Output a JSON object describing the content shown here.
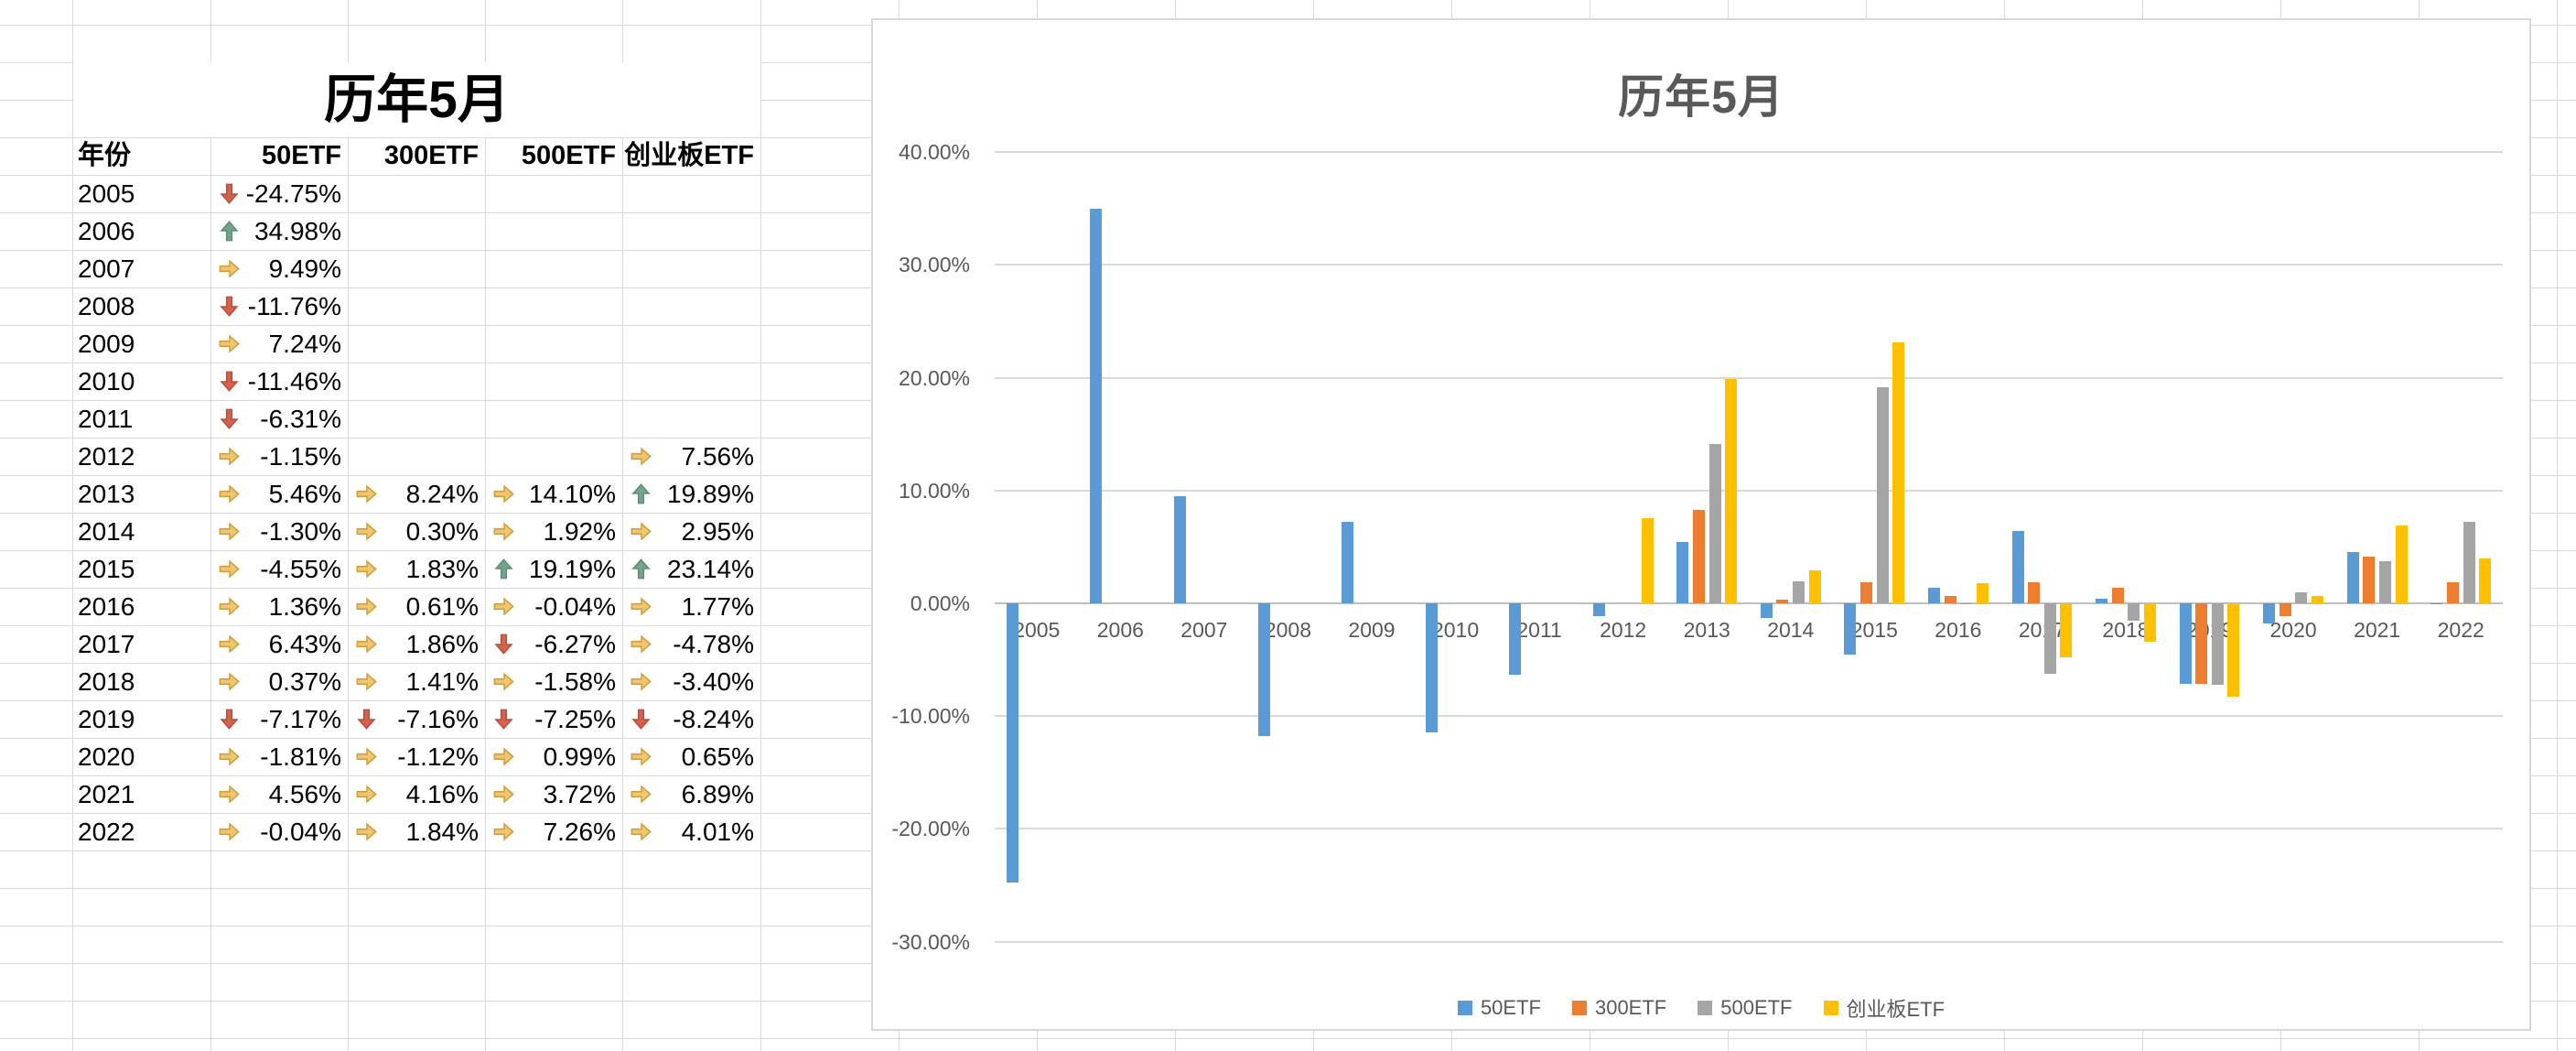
{
  "table": {
    "title": "历年5月",
    "headers": [
      "年份",
      "50ETF",
      "300ETF",
      "500ETF",
      "创业板ETF"
    ],
    "icon_colors": {
      "up": {
        "fill": "#74A48E",
        "stroke": "#5F8F79"
      },
      "right": {
        "fill": "#F0C670",
        "stroke": "#CE9F3F"
      },
      "down": {
        "fill": "#D4624C",
        "stroke": "#BC4F3A"
      }
    },
    "rows": [
      {
        "year": "2005",
        "cells": [
          {
            "icon": "down",
            "value": "-24.75%"
          },
          null,
          null,
          null
        ]
      },
      {
        "year": "2006",
        "cells": [
          {
            "icon": "up",
            "value": "34.98%"
          },
          null,
          null,
          null
        ]
      },
      {
        "year": "2007",
        "cells": [
          {
            "icon": "right",
            "value": "9.49%"
          },
          null,
          null,
          null
        ]
      },
      {
        "year": "2008",
        "cells": [
          {
            "icon": "down",
            "value": "-11.76%"
          },
          null,
          null,
          null
        ]
      },
      {
        "year": "2009",
        "cells": [
          {
            "icon": "right",
            "value": "7.24%"
          },
          null,
          null,
          null
        ]
      },
      {
        "year": "2010",
        "cells": [
          {
            "icon": "down",
            "value": "-11.46%"
          },
          null,
          null,
          null
        ]
      },
      {
        "year": "2011",
        "cells": [
          {
            "icon": "down",
            "value": "-6.31%"
          },
          null,
          null,
          null
        ]
      },
      {
        "year": "2012",
        "cells": [
          {
            "icon": "right",
            "value": "-1.15%"
          },
          null,
          null,
          {
            "icon": "right",
            "value": "7.56%"
          }
        ]
      },
      {
        "year": "2013",
        "cells": [
          {
            "icon": "right",
            "value": "5.46%"
          },
          {
            "icon": "right",
            "value": "8.24%"
          },
          {
            "icon": "right",
            "value": "14.10%"
          },
          {
            "icon": "up",
            "value": "19.89%"
          }
        ]
      },
      {
        "year": "2014",
        "cells": [
          {
            "icon": "right",
            "value": "-1.30%"
          },
          {
            "icon": "right",
            "value": "0.30%"
          },
          {
            "icon": "right",
            "value": "1.92%"
          },
          {
            "icon": "right",
            "value": "2.95%"
          }
        ]
      },
      {
        "year": "2015",
        "cells": [
          {
            "icon": "right",
            "value": "-4.55%"
          },
          {
            "icon": "right",
            "value": "1.83%"
          },
          {
            "icon": "up",
            "value": "19.19%"
          },
          {
            "icon": "up",
            "value": "23.14%"
          }
        ]
      },
      {
        "year": "2016",
        "cells": [
          {
            "icon": "right",
            "value": "1.36%"
          },
          {
            "icon": "right",
            "value": "0.61%"
          },
          {
            "icon": "right",
            "value": "-0.04%"
          },
          {
            "icon": "right",
            "value": "1.77%"
          }
        ]
      },
      {
        "year": "2017",
        "cells": [
          {
            "icon": "right",
            "value": "6.43%"
          },
          {
            "icon": "right",
            "value": "1.86%"
          },
          {
            "icon": "down",
            "value": "-6.27%"
          },
          {
            "icon": "right",
            "value": "-4.78%"
          }
        ]
      },
      {
        "year": "2018",
        "cells": [
          {
            "icon": "right",
            "value": "0.37%"
          },
          {
            "icon": "right",
            "value": "1.41%"
          },
          {
            "icon": "right",
            "value": "-1.58%"
          },
          {
            "icon": "right",
            "value": "-3.40%"
          }
        ]
      },
      {
        "year": "2019",
        "cells": [
          {
            "icon": "down",
            "value": "-7.17%"
          },
          {
            "icon": "down",
            "value": "-7.16%"
          },
          {
            "icon": "down",
            "value": "-7.25%"
          },
          {
            "icon": "down",
            "value": "-8.24%"
          }
        ]
      },
      {
        "year": "2020",
        "cells": [
          {
            "icon": "right",
            "value": "-1.81%"
          },
          {
            "icon": "right",
            "value": "-1.12%"
          },
          {
            "icon": "right",
            "value": "0.99%"
          },
          {
            "icon": "right",
            "value": "0.65%"
          }
        ]
      },
      {
        "year": "2021",
        "cells": [
          {
            "icon": "right",
            "value": "4.56%"
          },
          {
            "icon": "right",
            "value": "4.16%"
          },
          {
            "icon": "right",
            "value": "3.72%"
          },
          {
            "icon": "right",
            "value": "6.89%"
          }
        ]
      },
      {
        "year": "2022",
        "cells": [
          {
            "icon": "right",
            "value": "-0.04%"
          },
          {
            "icon": "right",
            "value": "1.84%"
          },
          {
            "icon": "right",
            "value": "7.26%"
          },
          {
            "icon": "right",
            "value": "4.01%"
          }
        ]
      }
    ]
  },
  "chart_data": {
    "type": "bar",
    "title": "历年5月",
    "categories": [
      "2005",
      "2006",
      "2007",
      "2008",
      "2009",
      "2010",
      "2011",
      "2012",
      "2013",
      "2014",
      "2015",
      "2016",
      "2017",
      "2018",
      "2019",
      "2020",
      "2021",
      "2022"
    ],
    "series": [
      {
        "name": "50ETF",
        "color": "#5B9BD5",
        "values": [
          -24.75,
          34.98,
          9.49,
          -11.76,
          7.24,
          -11.46,
          -6.31,
          -1.15,
          5.46,
          -1.3,
          -4.55,
          1.36,
          6.43,
          0.37,
          -7.17,
          -1.81,
          4.56,
          -0.04
        ]
      },
      {
        "name": "300ETF",
        "color": "#ED7D31",
        "values": [
          null,
          null,
          null,
          null,
          null,
          null,
          null,
          null,
          8.24,
          0.3,
          1.83,
          0.61,
          1.86,
          1.41,
          -7.16,
          -1.12,
          4.16,
          1.84
        ]
      },
      {
        "name": "500ETF",
        "color": "#A5A5A5",
        "values": [
          null,
          null,
          null,
          null,
          null,
          null,
          null,
          null,
          14.1,
          1.92,
          19.19,
          -0.04,
          -6.27,
          -1.58,
          -7.25,
          0.99,
          3.72,
          7.26
        ]
      },
      {
        "name": "创业板ETF",
        "color": "#FFC000",
        "values": [
          null,
          null,
          null,
          null,
          null,
          null,
          null,
          7.56,
          19.89,
          2.95,
          23.14,
          1.77,
          -4.78,
          -3.4,
          -8.24,
          0.65,
          6.89,
          4.01
        ]
      }
    ],
    "ylim": [
      -30,
      40
    ],
    "ytick_step": 10,
    "ytick_labels": [
      "40.00%",
      "30.00%",
      "20.00%",
      "10.00%",
      "0.00%",
      "-10.00%",
      "-20.00%",
      "-30.00%"
    ],
    "xlabel": "",
    "ylabel": "",
    "grid": true,
    "legend_position": "bottom",
    "axis_text_color": "#595959",
    "gridline_color": "#d9d9d9"
  }
}
